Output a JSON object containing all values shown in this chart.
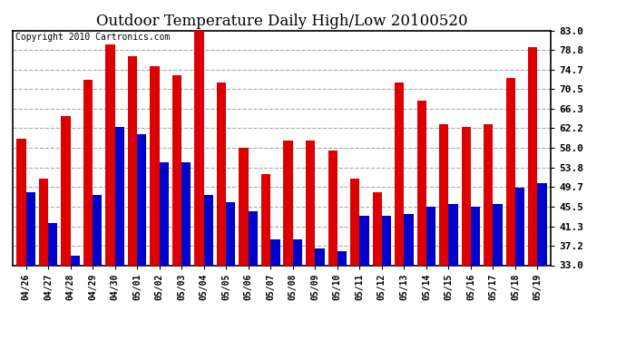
{
  "title": "Outdoor Temperature Daily High/Low 20100520",
  "copyright": "Copyright 2010 Cartronics.com",
  "categories": [
    "04/26",
    "04/27",
    "04/28",
    "04/29",
    "04/30",
    "05/01",
    "05/02",
    "05/03",
    "05/04",
    "05/05",
    "05/06",
    "05/07",
    "05/08",
    "05/09",
    "05/10",
    "05/11",
    "05/12",
    "05/13",
    "05/14",
    "05/15",
    "05/16",
    "05/17",
    "05/18",
    "05/19"
  ],
  "highs": [
    60.0,
    51.5,
    64.8,
    72.5,
    80.0,
    77.5,
    75.5,
    73.5,
    83.5,
    72.0,
    58.0,
    52.5,
    59.5,
    59.5,
    57.5,
    51.5,
    48.5,
    72.0,
    68.0,
    63.0,
    62.5,
    63.0,
    73.0,
    79.5
  ],
  "lows": [
    48.5,
    42.0,
    35.0,
    48.0,
    62.5,
    61.0,
    55.0,
    55.0,
    48.0,
    46.5,
    44.5,
    38.5,
    38.5,
    36.5,
    36.0,
    43.5,
    43.5,
    44.0,
    45.5,
    46.0,
    45.5,
    46.0,
    49.5,
    50.5
  ],
  "high_color": "#dd0000",
  "low_color": "#0000cc",
  "ylim_min": 33.0,
  "ylim_max": 83.0,
  "yticks": [
    33.0,
    37.2,
    41.3,
    45.5,
    49.7,
    53.8,
    58.0,
    62.2,
    66.3,
    70.5,
    74.7,
    78.8,
    83.0
  ],
  "background_color": "#ffffff",
  "plot_bg_color": "#ffffff",
  "grid_color": "#aaaaaa",
  "bar_width": 0.42,
  "title_fontsize": 12,
  "copyright_fontsize": 7
}
